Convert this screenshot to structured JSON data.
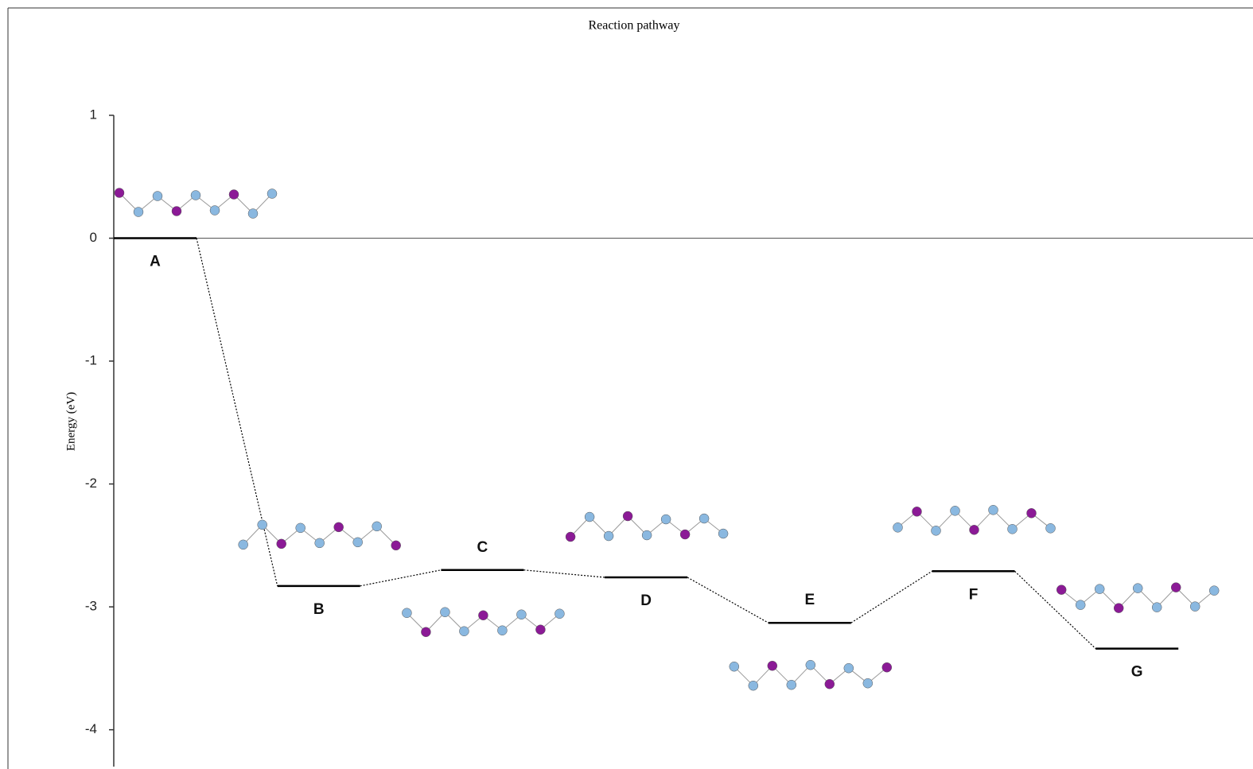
{
  "chart_data": {
    "type": "step",
    "title": "Reaction pathway",
    "y_label": "Energy (eV)",
    "categories": [
      "A",
      "B",
      "C",
      "D",
      "E",
      "F",
      "G"
    ],
    "values": [
      0,
      -2.83,
      -2.7,
      -2.76,
      -3.13,
      -2.71,
      -3.34
    ],
    "color": "#000000",
    "ylim": [
      -4.3,
      1
    ],
    "yticks": [
      1,
      0,
      -1,
      -2,
      -3,
      -4
    ]
  }
}
